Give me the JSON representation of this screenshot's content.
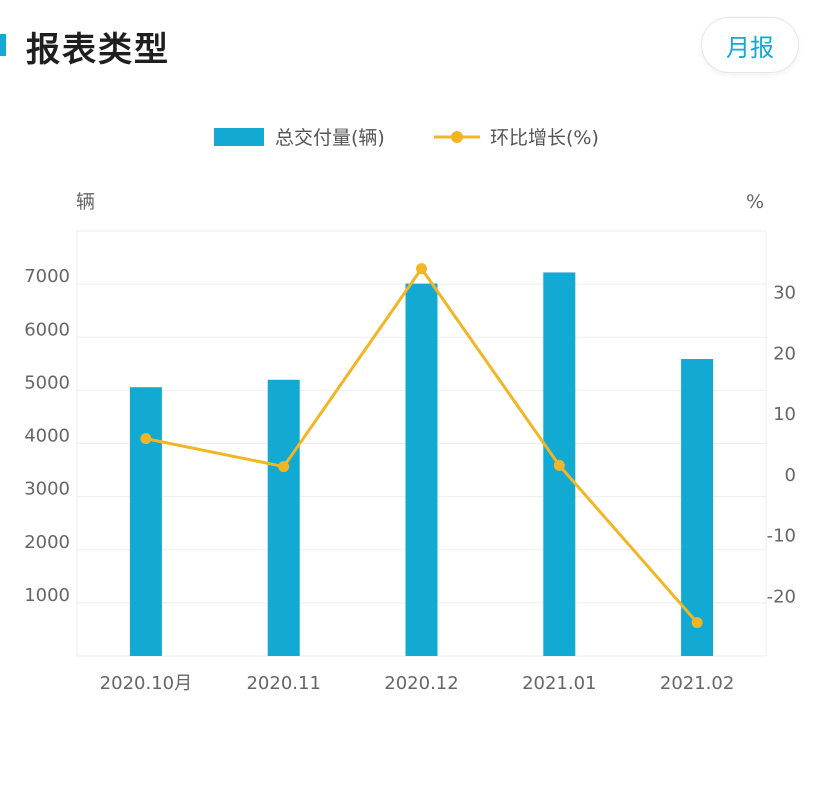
{
  "header": {
    "title": "报表类型",
    "period_button_label": "月报"
  },
  "colors": {
    "bar": "#12a9d3",
    "line": "#f2b524",
    "grid": "#eeeeee",
    "axis_text": "#666666"
  },
  "chart_data": {
    "type": "bar+line",
    "categories": [
      "2020.10月",
      "2020.11",
      "2020.12",
      "2021.01",
      "2021.02"
    ],
    "series": [
      {
        "name": "总交付量(辆)",
        "type": "bar",
        "axis": "left",
        "values": [
          5060,
          5200,
          7010,
          7220,
          5590
        ]
      },
      {
        "name": "环比增长(%)",
        "type": "line",
        "axis": "right",
        "values": [
          5.8,
          1.2,
          33.8,
          1.4,
          -24.5
        ]
      }
    ],
    "y_left": {
      "unit": "辆",
      "ticks": [
        "1000",
        "2000",
        "3000",
        "4000",
        "5000",
        "6000",
        "7000"
      ],
      "range": [
        0,
        8000
      ]
    },
    "y_right": {
      "unit": "%",
      "ticks": [
        "-20",
        "-10",
        "0",
        "10",
        "20",
        "30"
      ],
      "range": [
        -30,
        40
      ]
    },
    "legend_position": "top-center",
    "grid": true
  }
}
